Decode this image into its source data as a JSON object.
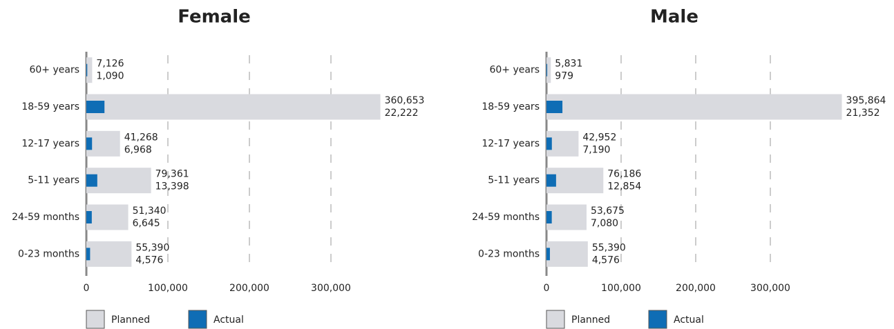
{
  "chart_data": [
    {
      "type": "bar",
      "title": "Female",
      "categories": [
        "60+ years",
        "18-59 years",
        "12-17 years",
        "5-11 years",
        "24-59 months",
        "0-23 months"
      ],
      "series": [
        {
          "name": "Planned",
          "color": "#d9dadf",
          "values": [
            7126,
            360653,
            41268,
            79361,
            51340,
            55390
          ],
          "value_labels": [
            "7,126",
            "360,653",
            "41,268",
            "79,361",
            "51,340",
            "55,390"
          ]
        },
        {
          "name": "Actual",
          "color": "#0f6db5",
          "values": [
            1090,
            22222,
            6968,
            13398,
            6645,
            4576
          ],
          "value_labels": [
            "1,090",
            "22,222",
            "6,968",
            "13,398",
            "6,645",
            "4,576"
          ]
        }
      ],
      "xlim": [
        0,
        400000
      ],
      "xticks": [
        0,
        {
          "value": 100000,
          "label": "100,000"
        },
        {
          "value": 200000,
          "label": "200,000"
        },
        {
          "value": 300000,
          "label": "300,000"
        }
      ],
      "grid": true
    },
    {
      "type": "bar",
      "title": "Male",
      "categories": [
        "60+ years",
        "18-59 years",
        "12-17 years",
        "5-11 years",
        "24-59 months",
        "0-23 months"
      ],
      "series": [
        {
          "name": "Planned",
          "color": "#d9dadf",
          "values": [
            5831,
            395864,
            42952,
            76186,
            53675,
            55390
          ],
          "value_labels": [
            "5,831",
            "395,864",
            "42,952",
            "76,186",
            "53,675",
            "55,390"
          ]
        },
        {
          "name": "Actual",
          "color": "#0f6db5",
          "values": [
            979,
            21352,
            7190,
            12854,
            7080,
            4576
          ],
          "value_labels": [
            "979",
            "21,352",
            "7,190",
            "12,854",
            "7,080",
            "4,576"
          ]
        }
      ],
      "xlim": [
        0,
        400000
      ],
      "xticks": [
        0,
        {
          "value": 100000,
          "label": "100,000"
        },
        {
          "value": 200000,
          "label": "200,000"
        },
        {
          "value": 300000,
          "label": "300,000"
        }
      ],
      "grid": true
    }
  ]
}
